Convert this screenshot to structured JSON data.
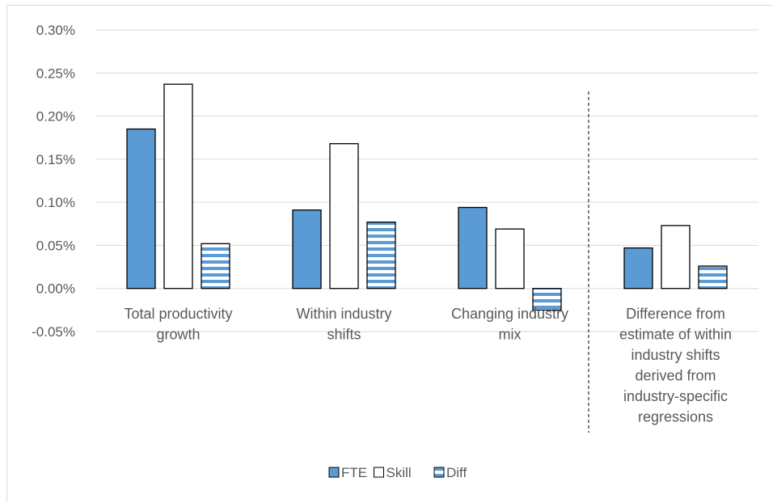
{
  "chart_data": {
    "type": "bar",
    "categories": [
      [
        "Total productivity",
        "growth"
      ],
      [
        "Within industry",
        "shifts"
      ],
      [
        "Changing industry",
        "mix"
      ],
      [
        "Difference from",
        "estimate of within",
        "industry shifts",
        "derived from",
        "industry-specific",
        "regressions"
      ]
    ],
    "series": [
      {
        "name": "FTE",
        "values": [
          0.185,
          0.091,
          0.094,
          0.047
        ],
        "style": "solid",
        "color": "#5b9bd5"
      },
      {
        "name": "Skill",
        "values": [
          0.237,
          0.168,
          0.069,
          0.073
        ],
        "style": "outline",
        "color": "#ffffff"
      },
      {
        "name": "Diff",
        "values": [
          0.052,
          0.077,
          -0.025,
          0.026
        ],
        "style": "horizontal-stripes",
        "color": "#5b9bd5"
      }
    ],
    "yticks": [
      "0.30%",
      "0.25%",
      "0.20%",
      "0.15%",
      "0.10%",
      "0.05%",
      "0.00%",
      "-0.05%"
    ],
    "ylim": [
      -0.05,
      0.3
    ],
    "unit": "%",
    "grid": true,
    "legend_position": "bottom",
    "separator": "dashed vertical line before last category"
  }
}
